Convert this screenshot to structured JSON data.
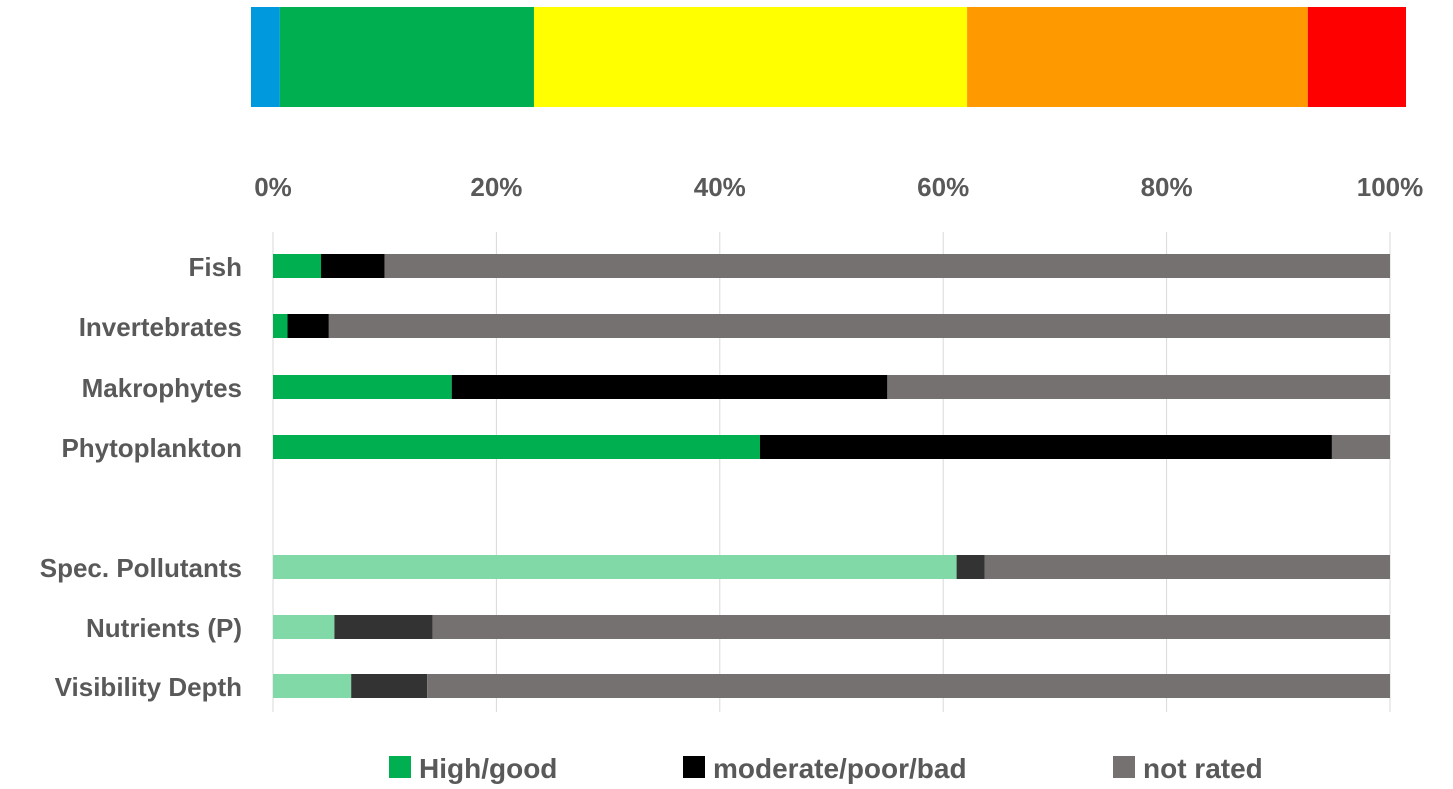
{
  "chart_data": {
    "type": "bar",
    "orientation": "horizontal",
    "stacked": true,
    "percent_stacked": true,
    "title": "",
    "xlabel": "",
    "ylabel": "",
    "xlim": [
      0,
      100
    ],
    "x_ticks": [
      "0%",
      "20%",
      "40%",
      "60%",
      "80%",
      "100%"
    ],
    "x_tick_values": [
      0,
      20,
      40,
      60,
      80,
      100
    ],
    "x_axis_position": "top",
    "grid": true,
    "legend_position": "bottom",
    "status_scale_bar": {
      "segments": [
        {
          "value": 2.5,
          "color": "#0099dd"
        },
        {
          "value": 22,
          "color": "#00b050"
        },
        {
          "value": 37.5,
          "color": "#ffff00"
        },
        {
          "value": 29.5,
          "color": "#ff9900"
        },
        {
          "value": 8.5,
          "color": "#ff0000"
        }
      ]
    },
    "categories": [
      "Fish",
      "Invertebrates",
      "Makrophytes",
      "Phytoplankton",
      "Spec. Pollutants",
      "Nutrients (P)",
      "Visibility Depth"
    ],
    "groups": [
      {
        "categories": [
          "Fish",
          "Invertebrates",
          "Makrophytes",
          "Phytoplankton"
        ],
        "colors": [
          "#00b050",
          "#000000",
          "#767171"
        ]
      },
      {
        "categories": [
          "Spec. Pollutants",
          "Nutrients (P)",
          "Visibility Depth"
        ],
        "colors": [
          "#82d9a8",
          "#333333",
          "#767171"
        ]
      }
    ],
    "series": [
      {
        "name": "High/good",
        "color": "#00b050",
        "values": [
          4.3,
          1.3,
          16,
          43.6,
          61.2,
          5.5,
          7
        ]
      },
      {
        "name": "moderate/poor/bad",
        "color": "#000000",
        "values": [
          5.7,
          3.7,
          39,
          51.2,
          2.5,
          8.8,
          6.8
        ]
      },
      {
        "name": "not rated",
        "color": "#767171",
        "values": [
          90,
          95,
          45,
          5.2,
          36.3,
          85.7,
          86.2
        ]
      }
    ]
  }
}
